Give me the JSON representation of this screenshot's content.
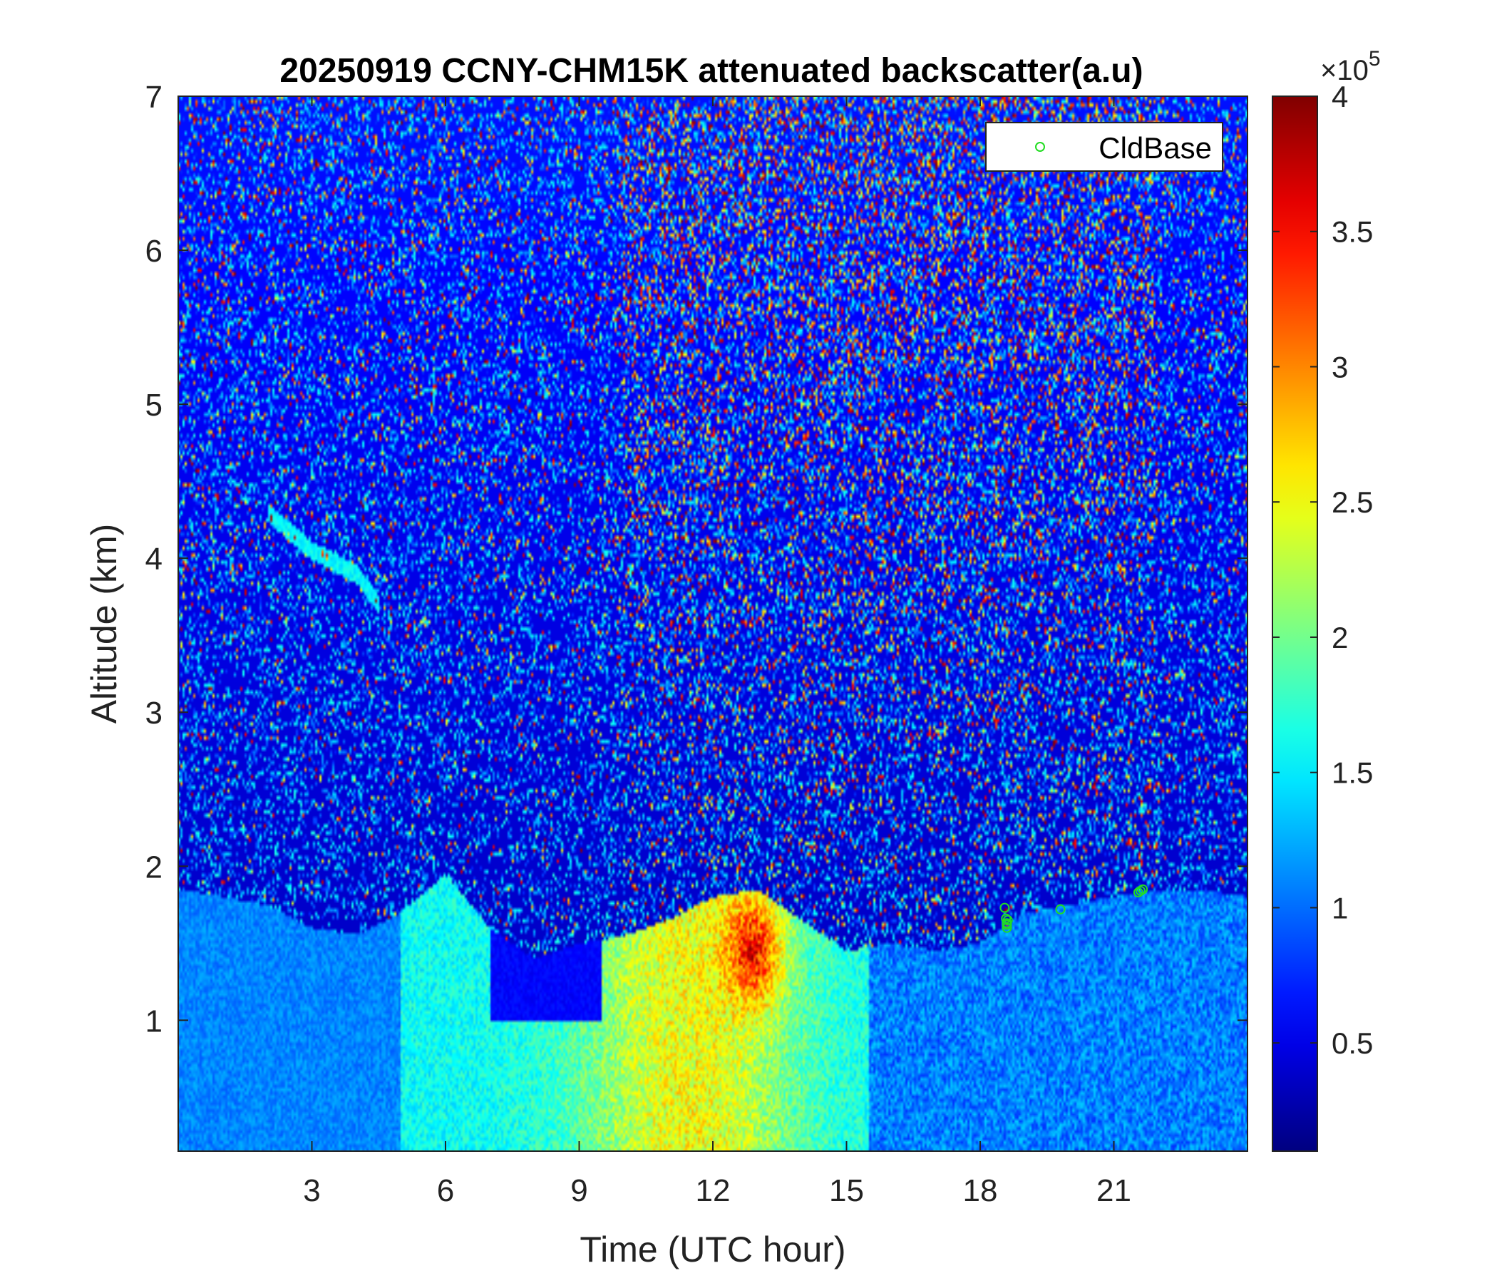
{
  "chart_data": {
    "type": "heatmap",
    "title": "20250919 CCNY-CHM15K attenuated backscatter(a.u)",
    "xlabel": "Time (UTC hour)",
    "ylabel": "Altitude (km)",
    "xlim": [
      0,
      24
    ],
    "ylim": [
      0.15,
      7
    ],
    "x_ticks": [
      3,
      6,
      9,
      12,
      15,
      18,
      21
    ],
    "y_ticks": [
      1,
      2,
      3,
      4,
      5,
      6,
      7
    ],
    "colorbar": {
      "colormap": "jet",
      "range": [
        0.1,
        4
      ],
      "ticks": [
        0.5,
        1,
        1.5,
        2,
        2.5,
        3,
        3.5,
        4
      ],
      "multiplier_base": "×10",
      "multiplier_exp": "5"
    },
    "legend": {
      "position": "top-right",
      "entries": [
        {
          "label": "CldBase",
          "marker": "circle",
          "color": "#22dd22"
        }
      ]
    },
    "features": [
      {
        "name": "aerosol_layer_height_km",
        "x": [
          0,
          1,
          2,
          3,
          4,
          5,
          6,
          7,
          8,
          9,
          10,
          11,
          12,
          13,
          14,
          15,
          16,
          17,
          18,
          19,
          20,
          21,
          22,
          23,
          24
        ],
        "y": [
          1.85,
          1.8,
          1.75,
          1.6,
          1.55,
          1.7,
          1.95,
          1.6,
          1.4,
          1.5,
          1.55,
          1.65,
          1.8,
          1.85,
          1.65,
          1.45,
          1.5,
          1.45,
          1.5,
          1.7,
          1.75,
          1.8,
          1.85,
          1.85,
          1.8
        ]
      },
      {
        "name": "high_intensity_max",
        "x": 12.9,
        "y": 1.45,
        "value": 3.9
      },
      {
        "name": "elevated_layer",
        "x": [
          2.0,
          3.0,
          4.0,
          4.5
        ],
        "y": [
          4.3,
          4.05,
          3.9,
          3.7
        ]
      }
    ],
    "series": [
      {
        "name": "CldBase",
        "type": "scatter",
        "x": [
          18.55,
          18.58,
          18.6,
          18.6,
          18.62,
          18.6,
          19.8,
          21.55,
          21.6,
          21.65
        ],
        "y": [
          1.73,
          1.66,
          1.63,
          1.6,
          1.65,
          1.62,
          1.72,
          1.83,
          1.84,
          1.85
        ]
      }
    ]
  }
}
